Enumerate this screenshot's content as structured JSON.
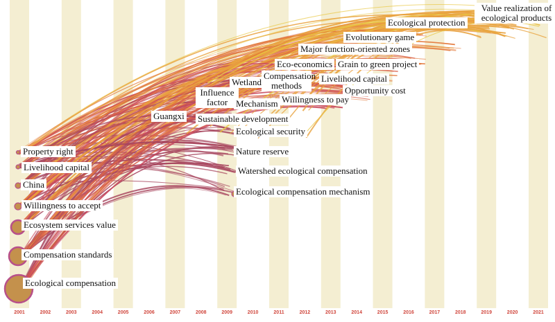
{
  "colors": {
    "band": "#f4eed2",
    "year_label": "#d0463c",
    "arc_palette": [
      "#e8c640",
      "#e9a23e",
      "#e3793b",
      "#d9614a",
      "#c94a5e",
      "#a8475f"
    ],
    "node_fill": "#c4914c",
    "node_ring": "#b8508a"
  },
  "years": [
    "2001",
    "2002",
    "2003",
    "2004",
    "2005",
    "2006",
    "2007",
    "2008",
    "2009",
    "2010",
    "2011",
    "2012",
    "2013",
    "2014",
    "2015",
    "2016",
    "2017",
    "2018",
    "2019",
    "2020",
    "2021"
  ],
  "keywords": [
    {
      "id": "ecological-compensation",
      "label": "Ecological compensation",
      "year": 2001
    },
    {
      "id": "compensation-standards",
      "label": "Compensation standards",
      "year": 2001
    },
    {
      "id": "ecosystem-services-value",
      "label": "Ecosystem services value",
      "year": 2001
    },
    {
      "id": "willingness-to-accept",
      "label": "Willingness to accept",
      "year": 2001
    },
    {
      "id": "china",
      "label": "China",
      "year": 2001
    },
    {
      "id": "livelihood-capital-early",
      "label": "Livelihood capital",
      "year": 2001
    },
    {
      "id": "property-right",
      "label": "Property right",
      "year": 2001
    },
    {
      "id": "guangxi",
      "label": "Guangxi",
      "year": 2007
    },
    {
      "id": "influence-factor",
      "label": "Influence factor",
      "year": 2009
    },
    {
      "id": "wetland",
      "label": "Wetland",
      "year": 2010
    },
    {
      "id": "compensation-methods",
      "label": "Compensation methods",
      "year": 2011
    },
    {
      "id": "mechanism",
      "label": "Mechanism",
      "year": 2010
    },
    {
      "id": "sustainable-development",
      "label": "Sustainable development",
      "year": 2009
    },
    {
      "id": "ecological-security",
      "label": "Ecological security",
      "year": 2010
    },
    {
      "id": "nature-reserve",
      "label": "Nature reserve",
      "year": 2010
    },
    {
      "id": "watershed-ecological-compensation",
      "label": "Watershed ecological compensation",
      "year": 2010
    },
    {
      "id": "ecological-compensation-mechanism",
      "label": "Ecological compensation mechanism",
      "year": 2009
    },
    {
      "id": "eco-economics",
      "label": "Eco-economics",
      "year": 2012
    },
    {
      "id": "willingness-to-pay",
      "label": "Willingness to pay",
      "year": 2012
    },
    {
      "id": "livelihood-capital",
      "label": "Livelihood capital",
      "year": 2013
    },
    {
      "id": "opportunity-cost",
      "label": "Opportunity cost",
      "year": 2014
    },
    {
      "id": "grain-to-green-project",
      "label": "Grain to green project",
      "year": 2014
    },
    {
      "id": "major-function-oriented-zones",
      "label": "Major function-oriented zones",
      "year": 2013
    },
    {
      "id": "evolutionary-game",
      "label": "Evolutionary game",
      "year": 2014
    },
    {
      "id": "ecological-protection",
      "label": "Ecological protection",
      "year": 2016
    },
    {
      "id": "value-realization",
      "label": "Value realization of ecological products",
      "year": 2019
    }
  ]
}
